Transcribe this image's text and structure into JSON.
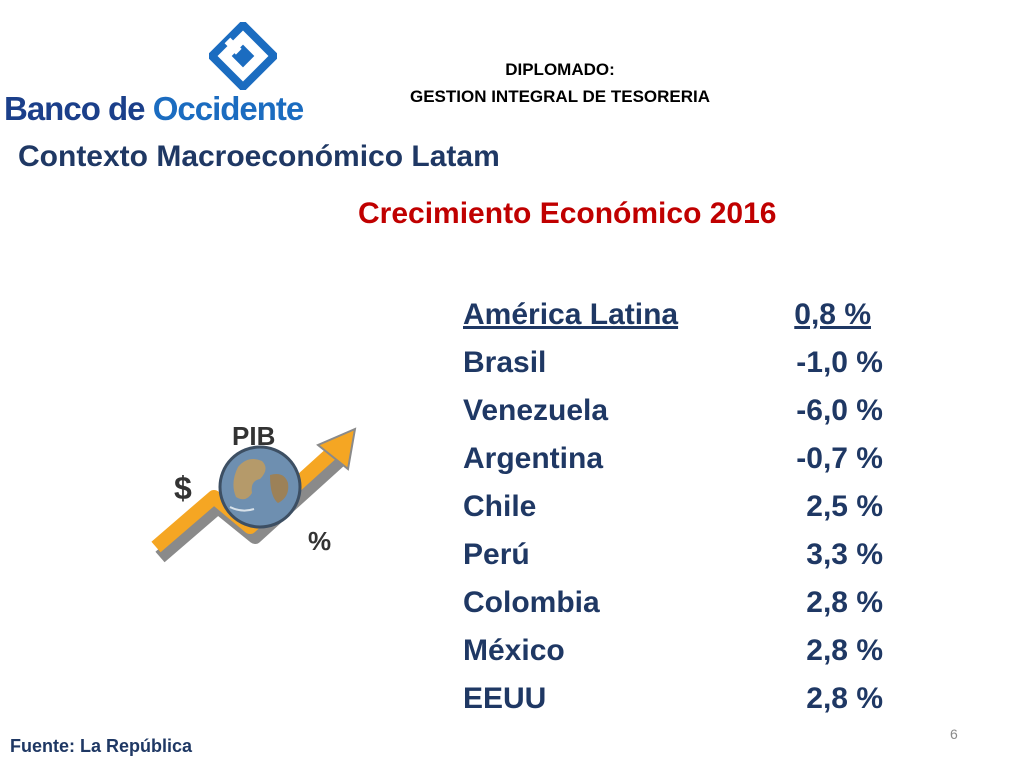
{
  "logo": {
    "text_main": "Banco de ",
    "text_accent": "Occidente"
  },
  "header": {
    "line1": "DIPLOMADO:",
    "line2": "GESTION INTEGRAL DE TESORERIA"
  },
  "section_title": "Contexto Macroeconómico Latam",
  "sub_title": "Crecimiento Económico 2016",
  "growth_table": {
    "rows": [
      {
        "country": "América Latina",
        "value": "0,8 %"
      },
      {
        "country": "Brasil",
        "value": "-1,0 %"
      },
      {
        "country": "Venezuela",
        "value": "-6,0 %"
      },
      {
        "country": "Argentina",
        "value": "-0,7 %"
      },
      {
        "country": "Chile",
        "value": "2,5 %"
      },
      {
        "country": "Perú",
        "value": "3,3 %"
      },
      {
        "country": "Colombia",
        "value": "2,8 %"
      },
      {
        "country": "México",
        "value": "2,8 %"
      },
      {
        "country": "EEUU",
        "value": "2,8 %"
      }
    ]
  },
  "illustration": {
    "label_top": "PIB",
    "label_left": "$",
    "label_right": "%"
  },
  "footer": {
    "source": "Fuente: La República",
    "page_number": "6"
  },
  "colors": {
    "title_navy": "#1f3864",
    "subtitle_red": "#c00000",
    "logo_blue": "#1b6cc0",
    "arrow_orange": "#f5a623"
  }
}
